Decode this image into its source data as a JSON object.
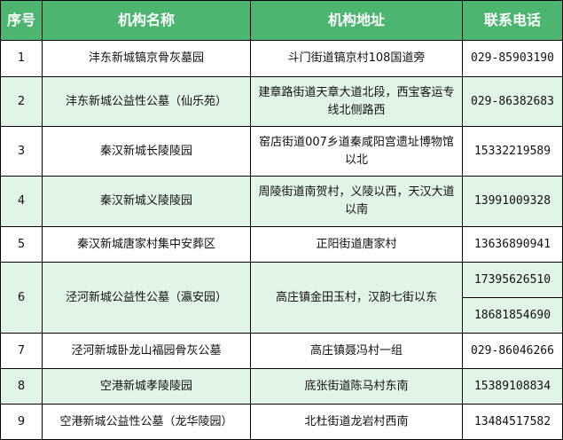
{
  "colors": {
    "header_bg": "#4cb671",
    "header_text": "#ffffff",
    "alt_row_bg": "#e1f5e6"
  },
  "headers": [
    "序号",
    "机构名称",
    "机构地址",
    "联系电话"
  ],
  "rows": [
    {
      "no": "1",
      "name": "沣东新城镐京骨灰墓园",
      "address": "斗门街道镐京村108国道旁",
      "phones": [
        "029-85903190"
      ]
    },
    {
      "no": "2",
      "name": "沣东新城公益性公墓（仙乐苑）",
      "address": "建章路街道天章大道北段，西宝客运专线北侧路西",
      "phones": [
        "029-86382683"
      ]
    },
    {
      "no": "3",
      "name": "秦汉新城长陵陵园",
      "address": "窑店街道007乡道秦咸阳宫遗址博物馆以北",
      "phones": [
        "15332219589"
      ]
    },
    {
      "no": "4",
      "name": "秦汉新城义陵陵园",
      "address": "周陵街道南贺村，义陵以西，天汉大道以南",
      "phones": [
        "13991009328"
      ]
    },
    {
      "no": "5",
      "name": "秦汉新城唐家村集中安葬区",
      "address": "正阳街道唐家村",
      "phones": [
        "13636890941"
      ]
    },
    {
      "no": "6",
      "name": "泾河新城公益性公墓（瀛安园）",
      "address": "高庄镇金田玉村，汉韵七街以东",
      "phones": [
        "17395626510",
        "18681854690"
      ]
    },
    {
      "no": "7",
      "name": "泾河新城卧龙山福园骨灰公墓",
      "address": "高庄镇聂冯村一组",
      "phones": [
        "029-86046266"
      ]
    },
    {
      "no": "8",
      "name": "空港新城孝陵陵园",
      "address": "底张街道陈马村东南",
      "phones": [
        "15389108834"
      ]
    },
    {
      "no": "9",
      "name": "空港新城公益性公墓（龙华陵园）",
      "address": "北杜街道龙岩村西南",
      "phones": [
        "13484517582"
      ]
    }
  ]
}
